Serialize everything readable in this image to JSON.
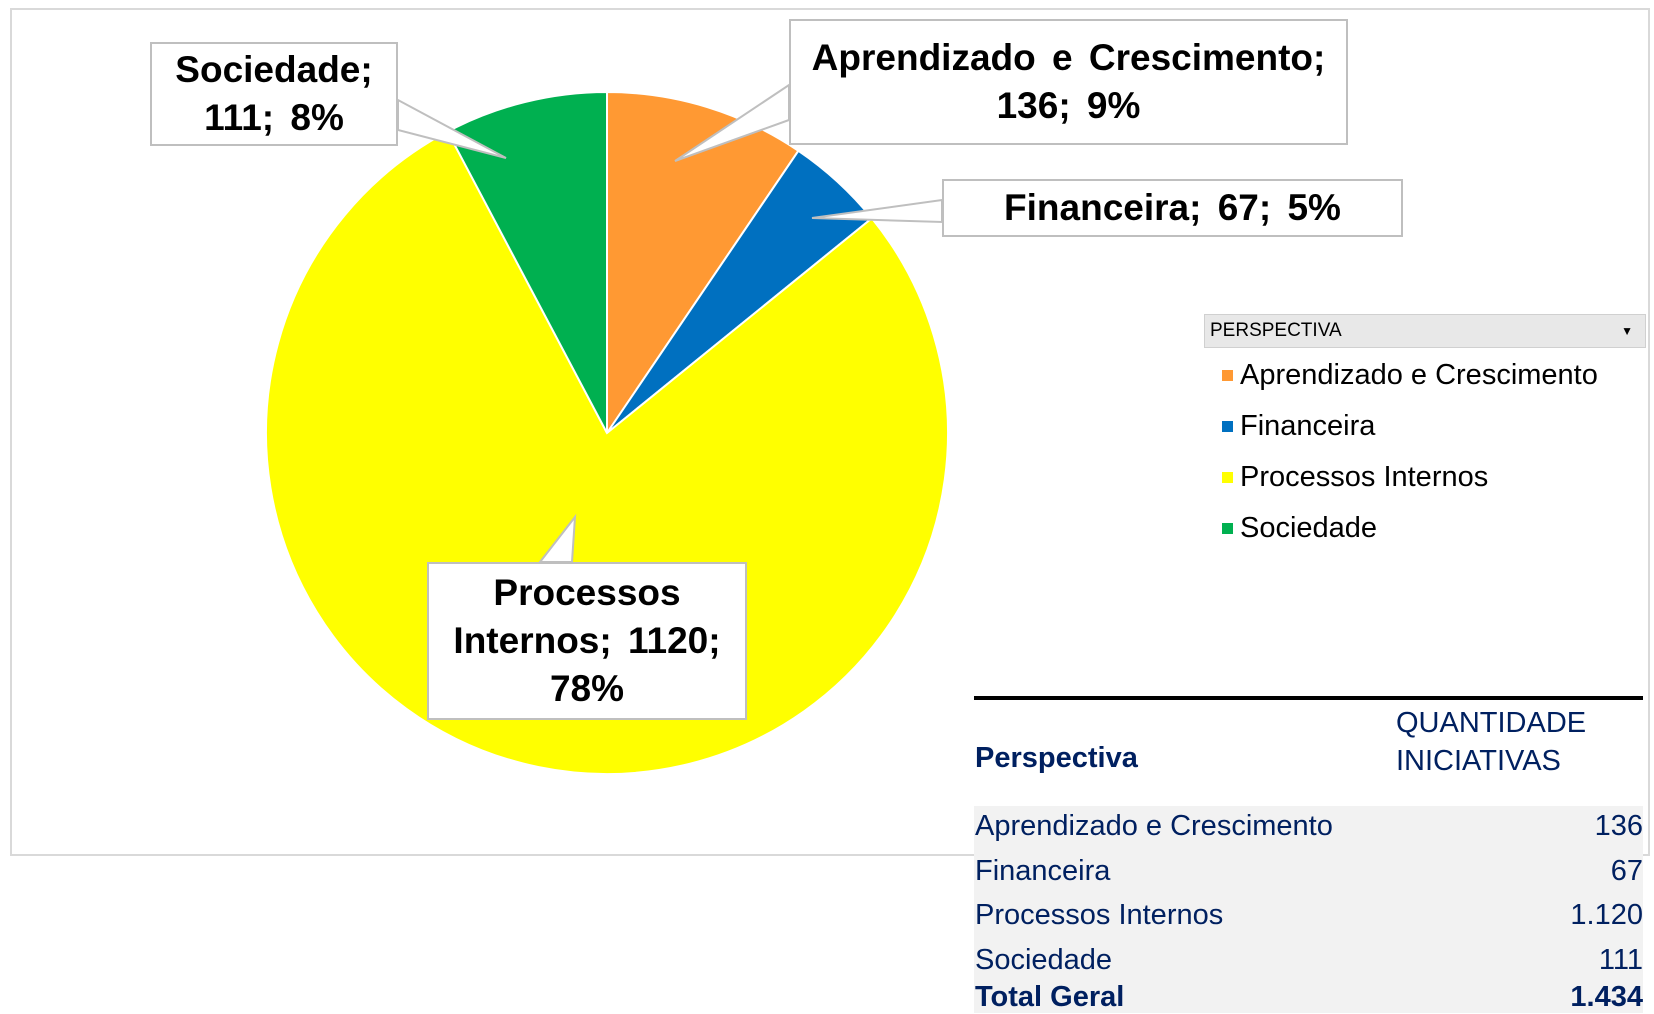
{
  "chart_data": {
    "type": "pie",
    "categories": [
      "Aprendizado e Crescimento",
      "Financeira",
      "Processos Internos",
      "Sociedade"
    ],
    "values": [
      136,
      67,
      1120,
      111
    ],
    "value_labels": [
      "Aprendizado e Crescimento; 136; 9%",
      "Financeira; 67; 5%",
      "Processos Internos; 1120; 78%",
      "Sociedade; 111; 8%"
    ],
    "colors": [
      "#ff9933",
      "#0070c0",
      "#ffff00",
      "#00b050"
    ],
    "legend_title": "PERSPECTIVA"
  },
  "table": {
    "columns": [
      "Perspectiva",
      "QUANTIDADE INICIATIVAS"
    ],
    "rows": [
      [
        "Aprendizado e Crescimento",
        "136"
      ],
      [
        "Financeira",
        "67"
      ],
      [
        "Processos Internos",
        "1.120"
      ],
      [
        "Sociedade",
        "111"
      ]
    ],
    "total": [
      "Total Geral",
      "1.434"
    ]
  }
}
